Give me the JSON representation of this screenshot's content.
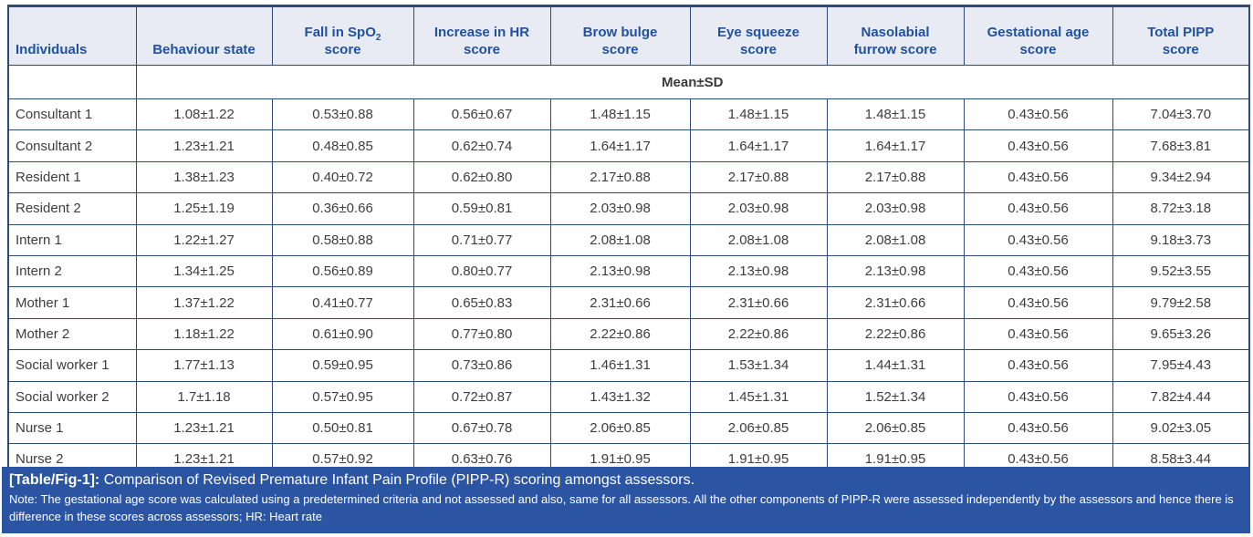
{
  "table": {
    "headers": [
      {
        "label": "Individuals"
      },
      {
        "label": "Behaviour state"
      },
      {
        "line1_pre": "Fall in SpO",
        "sub": "2",
        "line2": "score"
      },
      {
        "line1": "Increase in HR",
        "line2": "score"
      },
      {
        "line1": "Brow bulge",
        "line2": "score"
      },
      {
        "line1": "Eye squeeze",
        "line2": "score"
      },
      {
        "line1": "Nasolabial",
        "line2": "furrow score"
      },
      {
        "line1": "Gestational age",
        "line2": "score"
      },
      {
        "line1": "Total PIPP",
        "line2": "score"
      }
    ],
    "subheader": "Mean±SD",
    "rows": [
      {
        "individual": "Consultant 1",
        "values": [
          "1.08±1.22",
          "0.53±0.88",
          "0.56±0.67",
          "1.48±1.15",
          "1.48±1.15",
          "1.48±1.15",
          "0.43±0.56",
          "7.04±3.70"
        ]
      },
      {
        "individual": "Consultant 2",
        "values": [
          "1.23±1.21",
          "0.48±0.85",
          "0.62±0.74",
          "1.64±1.17",
          "1.64±1.17",
          "1.64±1.17",
          "0.43±0.56",
          "7.68±3.81"
        ]
      },
      {
        "individual": "Resident 1",
        "values": [
          "1.38±1.23",
          "0.40±0.72",
          "0.62±0.80",
          "2.17±0.88",
          "2.17±0.88",
          "2.17±0.88",
          "0.43±0.56",
          "9.34±2.94"
        ]
      },
      {
        "individual": "Resident 2",
        "values": [
          "1.25±1.19",
          "0.36±0.66",
          "0.59±0.81",
          "2.03±0.98",
          "2.03±0.98",
          "2.03±0.98",
          "0.43±0.56",
          "8.72±3.18"
        ]
      },
      {
        "individual": "Intern 1",
        "values": [
          "1.22±1.27",
          "0.58±0.88",
          "0.71±0.77",
          "2.08±1.08",
          "2.08±1.08",
          "2.08±1.08",
          "0.43±0.56",
          "9.18±3.73"
        ]
      },
      {
        "individual": "Intern 2",
        "values": [
          "1.34±1.25",
          "0.56±0.89",
          "0.80±0.77",
          "2.13±0.98",
          "2.13±0.98",
          "2.13±0.98",
          "0.43±0.56",
          "9.52±3.55"
        ]
      },
      {
        "individual": "Mother 1",
        "values": [
          "1.37±1.22",
          "0.41±0.77",
          "0.65±0.83",
          "2.31±0.66",
          "2.31±0.66",
          "2.31±0.66",
          "0.43±0.56",
          "9.79±2.58"
        ]
      },
      {
        "individual": "Mother 2",
        "values": [
          "1.18±1.22",
          "0.61±0.90",
          "0.77±0.80",
          "2.22±0.86",
          "2.22±0.86",
          "2.22±0.86",
          "0.43±0.56",
          "9.65±3.26"
        ]
      },
      {
        "individual": "Social worker 1",
        "values": [
          "1.77±1.13",
          "0.59±0.95",
          "0.73±0.86",
          "1.46±1.31",
          "1.53±1.34",
          "1.44±1.31",
          "0.43±0.56",
          "7.95±4.43"
        ]
      },
      {
        "individual": "Social worker 2",
        "values": [
          "1.7±1.18",
          "0.57±0.95",
          "0.72±0.87",
          "1.43±1.32",
          "1.45±1.31",
          "1.52±1.34",
          "0.43±0.56",
          "7.82±4.44"
        ]
      },
      {
        "individual": "Nurse 1",
        "values": [
          "1.23±1.21",
          "0.50±0.81",
          "0.67±0.78",
          "2.06±0.85",
          "2.06±0.85",
          "2.06±0.85",
          "0.43±0.56",
          "9.02±3.05"
        ]
      },
      {
        "individual": "Nurse 2",
        "values": [
          "1.23±1.21",
          "0.57±0.92",
          "0.63±0.76",
          "1.91±0.95",
          "1.91±0.95",
          "1.91±0.95",
          "0.43±0.56",
          "8.58±3.44"
        ]
      }
    ]
  },
  "caption": {
    "label": "[Table/Fig-1]:",
    "title": "Comparison of Revised Premature Infant Pain Profile (PIPP-R) scoring amongst assessors.",
    "note": "Note: The gestational age score was calculated using a predetermined criteria and not assessed and also, same for all assessors. All the other components of PIPP-R were assessed independently by the assessors and hence there is difference in these scores across assessors; HR: Heart rate"
  },
  "colors": {
    "header-bg": "#e9ebf4",
    "header-text": "#1f519f",
    "border": "#2c4a74",
    "body-text": "#3d3d3d",
    "caption-bg": "#2b54a3",
    "caption-text": "#ffffff"
  }
}
